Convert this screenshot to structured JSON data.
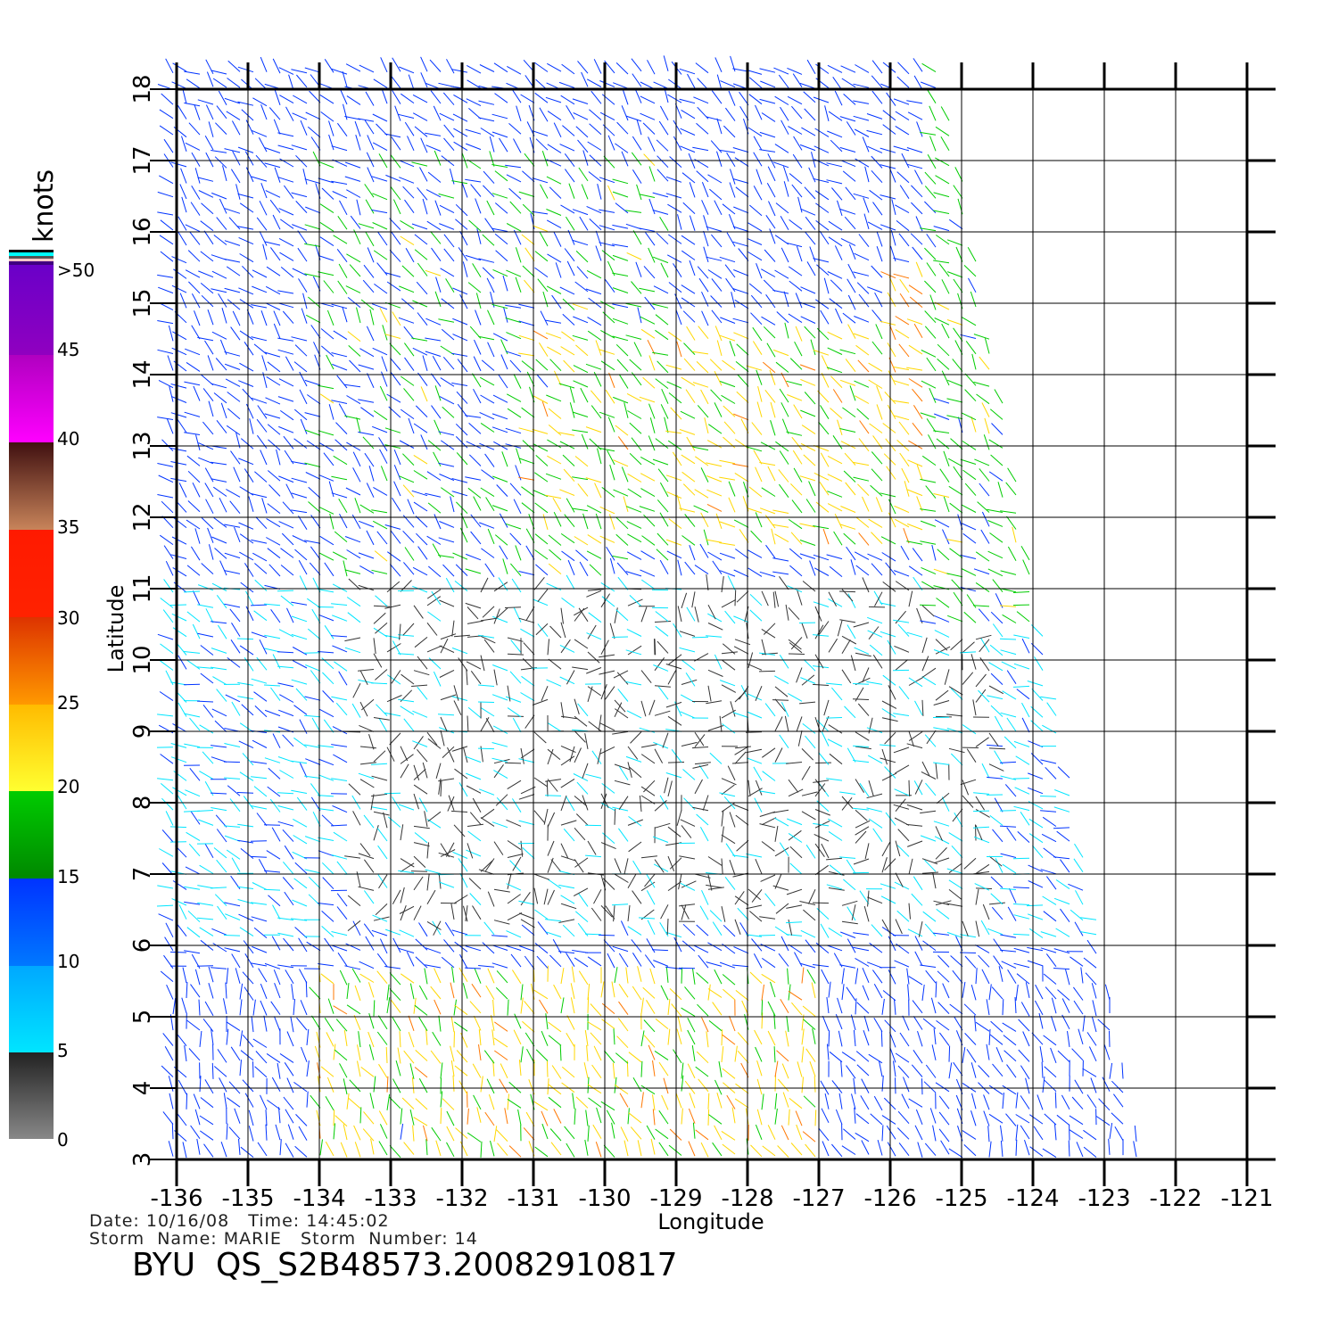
{
  "colorbar": {
    "title": "knots",
    "labels": [
      "0",
      "5",
      "10",
      "15",
      "20",
      "25",
      "30",
      "35",
      "40",
      "45",
      ">50"
    ],
    "colors": {
      "calm": "#333333",
      "light": "#00e5ff",
      "blue": "#0033ff",
      "green": "#00cc00",
      "yellow": "#ffd700",
      "orange": "#ff7700",
      "red": "#ff1a00",
      "brown": "#6b3a1f",
      "magenta": "#ff00ff",
      "purple": "#6a00c8"
    }
  },
  "axes": {
    "xlabel": "Longitude",
    "ylabel": "Latitude",
    "xticks": [
      "-136",
      "-135",
      "-134",
      "-133",
      "-132",
      "-131",
      "-130",
      "-129",
      "-128",
      "-127",
      "-126",
      "-125",
      "-124",
      "-123",
      "-122",
      "-121"
    ],
    "yticks": [
      "3",
      "4",
      "5",
      "6",
      "7",
      "8",
      "9",
      "10",
      "11",
      "12",
      "13",
      "14",
      "15",
      "16",
      "17",
      "18"
    ]
  },
  "meta": {
    "date_line": "Date: 10/16/08   Time: 14:45:02",
    "storm_line": "Storm  Name: MARIE   Storm  Number: 14",
    "product": "BYU  QS_S2B48573.20082910817"
  }
}
